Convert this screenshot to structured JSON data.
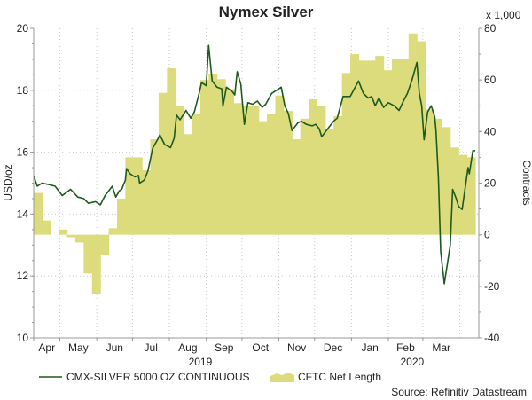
{
  "chart_data": {
    "type": "line+area",
    "title": "Nymex Silver",
    "x_origin_date": "2019-04-09",
    "x_unit": "days since origin",
    "xlim_days": [
      0,
      374
    ],
    "x_month_labels": [
      {
        "label": "Apr",
        "start": 0,
        "end": 22
      },
      {
        "label": "May",
        "start": 22,
        "end": 53
      },
      {
        "label": "Jun",
        "start": 53,
        "end": 83
      },
      {
        "label": "Jul",
        "start": 83,
        "end": 114
      },
      {
        "label": "Aug",
        "start": 114,
        "end": 145
      },
      {
        "label": "Sep",
        "start": 145,
        "end": 175
      },
      {
        "label": "Oct",
        "start": 175,
        "end": 206
      },
      {
        "label": "Nov",
        "start": 206,
        "end": 236
      },
      {
        "label": "Dec",
        "start": 236,
        "end": 267
      },
      {
        "label": "Jan",
        "start": 267,
        "end": 298
      },
      {
        "label": "Feb",
        "start": 298,
        "end": 327
      },
      {
        "label": "Mar",
        "start": 327,
        "end": 358
      }
    ],
    "x_year_labels": [
      {
        "label": "2019",
        "day": 140
      },
      {
        "label": "2020",
        "day": 318
      }
    ],
    "left_axis": {
      "label": "USD/oz",
      "ylim": [
        10,
        20
      ],
      "ticks": [
        10,
        12,
        14,
        16,
        18,
        20
      ]
    },
    "right_axis": {
      "label": "Contracts",
      "multiplier_label": "x 1,000",
      "ylim": [
        -40,
        80
      ],
      "ticks": [
        -40,
        -20,
        0,
        20,
        40,
        60,
        80
      ]
    },
    "grid": true,
    "legend_position": "bottom",
    "source": "Source: Refinitiv Datastream",
    "series": [
      {
        "name": "CMX-SILVER 5000 OZ CONTINUOUS",
        "type": "line",
        "axis": "left",
        "color": "#1e5a1e",
        "points": [
          [
            0,
            15.24
          ],
          [
            3,
            14.9
          ],
          [
            7,
            15.0
          ],
          [
            13,
            14.95
          ],
          [
            18,
            14.9
          ],
          [
            24,
            14.6
          ],
          [
            31,
            14.8
          ],
          [
            37,
            14.55
          ],
          [
            42,
            14.5
          ],
          [
            46,
            14.35
          ],
          [
            52,
            14.4
          ],
          [
            56,
            14.3
          ],
          [
            60,
            14.6
          ],
          [
            63,
            14.75
          ],
          [
            66,
            14.9
          ],
          [
            69,
            14.55
          ],
          [
            72,
            14.75
          ],
          [
            74,
            14.8
          ],
          [
            77,
            15.1
          ],
          [
            78,
            15.47
          ],
          [
            81,
            15.3
          ],
          [
            85,
            15.2
          ],
          [
            88,
            15.25
          ],
          [
            89,
            15.0
          ],
          [
            93,
            15.1
          ],
          [
            96,
            15.4
          ],
          [
            100,
            16.13
          ],
          [
            104,
            16.4
          ],
          [
            106,
            16.56
          ],
          [
            110,
            16.25
          ],
          [
            115,
            16.15
          ],
          [
            118,
            16.45
          ],
          [
            120,
            17.2
          ],
          [
            123,
            17.05
          ],
          [
            128,
            17.35
          ],
          [
            132,
            17.1
          ],
          [
            135,
            17.3
          ],
          [
            139,
            17.9
          ],
          [
            141,
            18.25
          ],
          [
            145,
            18.15
          ],
          [
            147,
            19.45
          ],
          [
            150,
            18.3
          ],
          [
            154,
            18.1
          ],
          [
            158,
            18.05
          ],
          [
            159,
            17.48
          ],
          [
            162,
            18.1
          ],
          [
            167,
            17.95
          ],
          [
            169,
            17.85
          ],
          [
            171,
            18.6
          ],
          [
            174,
            18.2
          ],
          [
            177,
            16.9
          ],
          [
            180,
            17.6
          ],
          [
            184,
            17.55
          ],
          [
            188,
            17.65
          ],
          [
            192,
            17.45
          ],
          [
            195,
            17.55
          ],
          [
            200,
            17.9
          ],
          [
            208,
            18.1
          ],
          [
            211,
            17.5
          ],
          [
            214,
            17.25
          ],
          [
            217,
            16.7
          ],
          [
            222,
            16.95
          ],
          [
            225,
            17.0
          ],
          [
            229,
            16.9
          ],
          [
            234,
            16.85
          ],
          [
            237,
            16.9
          ],
          [
            240,
            16.75
          ],
          [
            242,
            16.5
          ],
          [
            247,
            16.75
          ],
          [
            252,
            17.0
          ],
          [
            255,
            17.1
          ],
          [
            260,
            17.8
          ],
          [
            266,
            17.8
          ],
          [
            273,
            18.3
          ],
          [
            277,
            17.9
          ],
          [
            281,
            17.75
          ],
          [
            284,
            17.8
          ],
          [
            287,
            17.5
          ],
          [
            290,
            17.75
          ],
          [
            294,
            17.45
          ],
          [
            298,
            17.6
          ],
          [
            303,
            17.5
          ],
          [
            307,
            17.35
          ],
          [
            310,
            17.6
          ],
          [
            314,
            17.9
          ],
          [
            318,
            18.35
          ],
          [
            322,
            18.9
          ],
          [
            324,
            17.9
          ],
          [
            326,
            17.5
          ],
          [
            328,
            16.4
          ],
          [
            331,
            17.3
          ],
          [
            334,
            17.5
          ],
          [
            337,
            17.15
          ],
          [
            338,
            16.7
          ],
          [
            340,
            15.2
          ],
          [
            342,
            12.8
          ],
          [
            345,
            11.75
          ],
          [
            348,
            12.5
          ],
          [
            350,
            13.0
          ],
          [
            352,
            14.8
          ],
          [
            355,
            14.5
          ],
          [
            357,
            14.25
          ],
          [
            360,
            14.15
          ],
          [
            362,
            14.7
          ],
          [
            365,
            15.5
          ],
          [
            366,
            15.3
          ],
          [
            369,
            16.05
          ],
          [
            371,
            16.05
          ]
        ]
      },
      {
        "name": "CFTC Net Length",
        "type": "area-step",
        "axis": "right",
        "unit": "thousand contracts",
        "color": "#dcdc7c",
        "week_days": 7,
        "values": [
          16.2,
          5.5,
          0,
          2,
          -1,
          -3,
          -15,
          -23,
          -8,
          2.5,
          14,
          30,
          30,
          25,
          37,
          55,
          64.5,
          50,
          39,
          47,
          60,
          62.5,
          60.3,
          56.5,
          51,
          50,
          50,
          44,
          47,
          54,
          48,
          37,
          45,
          52.5,
          50,
          41,
          46,
          62.7,
          70,
          67.5,
          67.5,
          69.3,
          63.8,
          68,
          68,
          78,
          75,
          48.6,
          45,
          41.7,
          33.8,
          31,
          30
        ]
      }
    ]
  }
}
